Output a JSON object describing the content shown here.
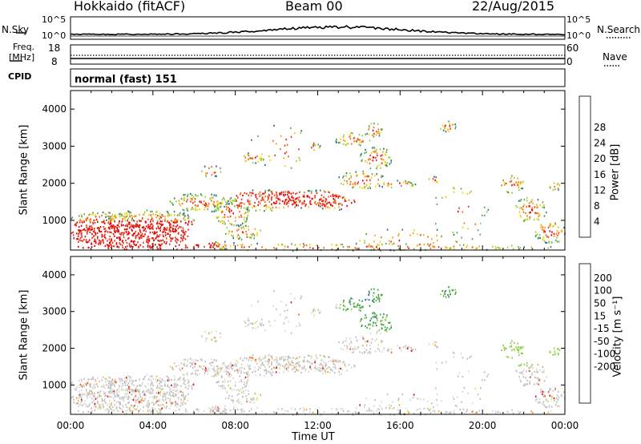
{
  "header": {
    "station": "Hokkaido (fitACF)",
    "beam": "Beam 00",
    "date": "22/Aug/2015"
  },
  "noise_panel": {
    "left_label": "N.Sky",
    "right_label": "N.Search",
    "left_ticks": [
      "10^5",
      "10^0"
    ],
    "right_ticks": [
      "10^5",
      "10^0"
    ]
  },
  "freq_panel": {
    "left_label_1": "Freq.",
    "left_label_2": "[MHz]",
    "left_ticks": [
      "18",
      "8"
    ],
    "right_label": "Nave",
    "right_ticks": [
      "60",
      "0"
    ],
    "cpid_label": "CPID",
    "cpid_text": "normal (fast) 151"
  },
  "colors": {
    "power_scale": [
      "#0000ff",
      "#2f5aa8",
      "#2e7d6c",
      "#5fa35f",
      "#9fcf3a",
      "#f4d400",
      "#f7a21a",
      "#f26a1d",
      "#e8331f",
      "#e00000"
    ],
    "velocity_scale": [
      "#e00000",
      "#f15a17",
      "#f5a623",
      "#f3d25a",
      "#d9d9cf",
      "#bdbdbd",
      "#8fd04a",
      "#4aa64a",
      "#2e8b57",
      "#1a5fb4",
      "#1030a0"
    ]
  },
  "chart_data": [
    {
      "type": "heatmap",
      "name": "power",
      "ylabel": "Slant Range [km]",
      "y_ticks": [
        "1000",
        "2000",
        "3000",
        "4000"
      ],
      "ylim": [
        200,
        4500
      ],
      "xlim_hours": [
        0,
        24
      ],
      "colorbar_label": "Power [dB]",
      "colorbar_ticks": [
        "4",
        "8",
        "12",
        "16",
        "20",
        "24",
        "28"
      ]
    },
    {
      "type": "heatmap",
      "name": "velocity",
      "ylabel": "Slant Range [km]",
      "y_ticks": [
        "1000",
        "2000",
        "3000",
        "4000"
      ],
      "ylim": [
        200,
        4500
      ],
      "xlim_hours": [
        0,
        24
      ],
      "colorbar_label": "Velocity [m s⁻¹]",
      "colorbar_ticks": [
        "200",
        "100",
        "50",
        "15",
        "-15",
        "-50",
        "-100",
        "-200"
      ]
    }
  ],
  "x_axis": {
    "tick_labels": [
      "00:00",
      "04:00",
      "08:00",
      "12:00",
      "16:00",
      "20:00",
      "00:00"
    ],
    "label": "Time UT"
  }
}
